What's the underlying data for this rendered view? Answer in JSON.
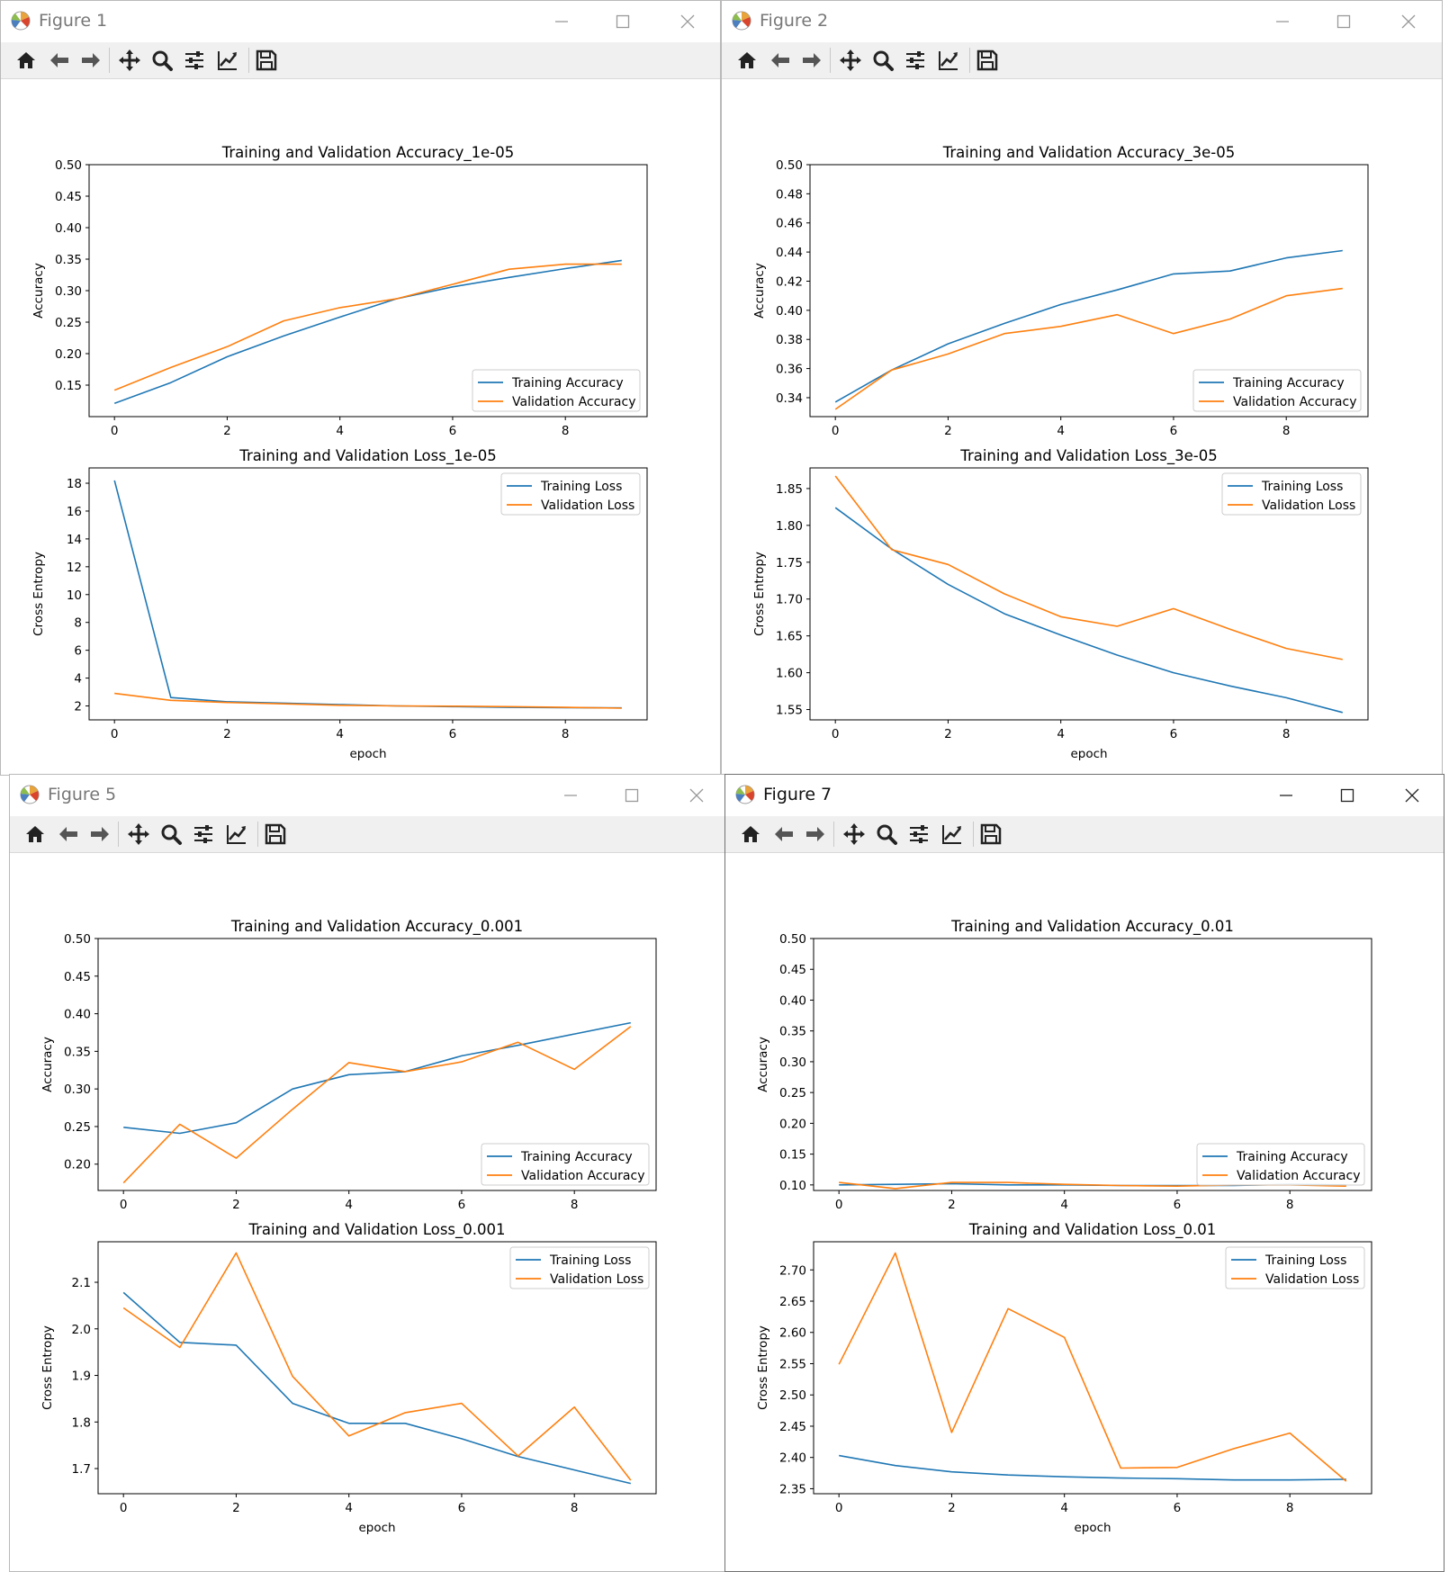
{
  "colors": {
    "train": "#1f77b4",
    "val": "#ff7f0e"
  },
  "toolbar_icons": [
    "home-icon",
    "back-arrow-icon",
    "forward-arrow-icon",
    "pan-icon",
    "zoom-icon",
    "configure-subplots-icon",
    "edit-axis-icon",
    "save-icon"
  ],
  "windows": [
    {
      "title": "Figure 1"
    },
    {
      "title": "Figure 2"
    },
    {
      "title": "Figure 5"
    },
    {
      "title": "Figure 7"
    }
  ],
  "chart_data": [
    {
      "figure": "Figure 1",
      "type": "line",
      "title": "Training and Validation Accuracy_1e-05",
      "xlabel": "",
      "ylabel": "Accuracy",
      "x": [
        0,
        1,
        2,
        3,
        4,
        5,
        6,
        7,
        8,
        9
      ],
      "ylim": [
        0.1,
        0.5
      ],
      "xlim": [
        -0.45,
        9.45
      ],
      "yticks": [
        0.15,
        0.2,
        0.25,
        0.3,
        0.35,
        0.4,
        0.45,
        0.5
      ],
      "yticklabels": [
        "0.15",
        "0.20",
        "0.25",
        "0.30",
        "0.35",
        "0.40",
        "0.45",
        "0.50"
      ],
      "xticks": [
        0,
        2,
        4,
        6,
        8
      ],
      "xticklabels": [
        "0",
        "2",
        "4",
        "6",
        "8"
      ],
      "legend_loc": "lower right",
      "series": [
        {
          "name": "Training Accuracy",
          "values": [
            0.121,
            0.154,
            0.195,
            0.228,
            0.258,
            0.287,
            0.306,
            0.321,
            0.335,
            0.348
          ]
        },
        {
          "name": "Validation Accuracy",
          "values": [
            0.142,
            0.178,
            0.211,
            0.252,
            0.273,
            0.287,
            0.31,
            0.334,
            0.342,
            0.342
          ]
        }
      ]
    },
    {
      "figure": "Figure 1",
      "type": "line",
      "title": "Training and Validation Loss_1e-05",
      "xlabel": "epoch",
      "ylabel": "Cross Entropy",
      "x": [
        0,
        1,
        2,
        3,
        4,
        5,
        6,
        7,
        8,
        9
      ],
      "ylim": [
        1.0,
        19.1
      ],
      "xlim": [
        -0.45,
        9.45
      ],
      "yticks": [
        2,
        4,
        6,
        8,
        10,
        12,
        14,
        16,
        18
      ],
      "yticklabels": [
        "2",
        "4",
        "6",
        "8",
        "10",
        "12",
        "14",
        "16",
        "18"
      ],
      "xticks": [
        0,
        2,
        4,
        6,
        8
      ],
      "xticklabels": [
        "0",
        "2",
        "4",
        "6",
        "8"
      ],
      "legend_loc": "upper right",
      "series": [
        {
          "name": "Training Loss",
          "values": [
            18.2,
            2.6,
            2.3,
            2.2,
            2.1,
            2.0,
            1.95,
            1.9,
            1.88,
            1.86
          ]
        },
        {
          "name": "Validation Loss",
          "values": [
            2.9,
            2.4,
            2.25,
            2.15,
            2.05,
            2.0,
            1.98,
            1.95,
            1.9,
            1.84
          ]
        }
      ]
    },
    {
      "figure": "Figure 2",
      "type": "line",
      "title": "Training and Validation Accuracy_3e-05",
      "xlabel": "",
      "ylabel": "Accuracy",
      "x": [
        0,
        1,
        2,
        3,
        4,
        5,
        6,
        7,
        8,
        9
      ],
      "ylim": [
        0.327,
        0.5
      ],
      "xlim": [
        -0.45,
        9.45
      ],
      "yticks": [
        0.34,
        0.36,
        0.38,
        0.4,
        0.42,
        0.44,
        0.46,
        0.48,
        0.5
      ],
      "yticklabels": [
        "0.34",
        "0.36",
        "0.38",
        "0.40",
        "0.42",
        "0.44",
        "0.46",
        "0.48",
        "0.50"
      ],
      "xticks": [
        0,
        2,
        4,
        6,
        8
      ],
      "xticklabels": [
        "0",
        "2",
        "4",
        "6",
        "8"
      ],
      "legend_loc": "lower right",
      "series": [
        {
          "name": "Training Accuracy",
          "values": [
            0.337,
            0.359,
            0.377,
            0.391,
            0.404,
            0.414,
            0.425,
            0.427,
            0.436,
            0.441
          ]
        },
        {
          "name": "Validation Accuracy",
          "values": [
            0.332,
            0.359,
            0.37,
            0.384,
            0.389,
            0.397,
            0.384,
            0.394,
            0.41,
            0.415
          ]
        }
      ]
    },
    {
      "figure": "Figure 2",
      "type": "line",
      "title": "Training and Validation Loss_3e-05",
      "xlabel": "epoch",
      "ylabel": "Cross Entropy",
      "x": [
        0,
        1,
        2,
        3,
        4,
        5,
        6,
        7,
        8,
        9
      ],
      "ylim": [
        1.536,
        1.878
      ],
      "xlim": [
        -0.45,
        9.45
      ],
      "yticks": [
        1.55,
        1.6,
        1.65,
        1.7,
        1.75,
        1.8,
        1.85
      ],
      "yticklabels": [
        "1.55",
        "1.60",
        "1.65",
        "1.70",
        "1.75",
        "1.80",
        "1.85"
      ],
      "xticks": [
        0,
        2,
        4,
        6,
        8
      ],
      "xticklabels": [
        "0",
        "2",
        "4",
        "6",
        "8"
      ],
      "legend_loc": "upper right",
      "series": [
        {
          "name": "Training Loss",
          "values": [
            1.824,
            1.768,
            1.72,
            1.68,
            1.651,
            1.624,
            1.6,
            1.582,
            1.566,
            1.546
          ]
        },
        {
          "name": "Validation Loss",
          "values": [
            1.867,
            1.767,
            1.747,
            1.707,
            1.676,
            1.663,
            1.687,
            1.659,
            1.633,
            1.618
          ]
        }
      ]
    },
    {
      "figure": "Figure 5",
      "type": "line",
      "title": "Training and Validation Accuracy_0.001",
      "xlabel": "",
      "ylabel": "Accuracy",
      "x": [
        0,
        1,
        2,
        3,
        4,
        5,
        6,
        7,
        8,
        9
      ],
      "ylim": [
        0.165,
        0.5
      ],
      "xlim": [
        -0.45,
        9.45
      ],
      "yticks": [
        0.2,
        0.25,
        0.3,
        0.35,
        0.4,
        0.45,
        0.5
      ],
      "yticklabels": [
        "0.20",
        "0.25",
        "0.30",
        "0.35",
        "0.40",
        "0.45",
        "0.50"
      ],
      "xticks": [
        0,
        2,
        4,
        6,
        8
      ],
      "xticklabels": [
        "0",
        "2",
        "4",
        "6",
        "8"
      ],
      "legend_loc": "lower right",
      "series": [
        {
          "name": "Training Accuracy",
          "values": [
            0.249,
            0.241,
            0.255,
            0.3,
            0.319,
            0.323,
            0.344,
            0.358,
            0.373,
            0.388
          ]
        },
        {
          "name": "Validation Accuracy",
          "values": [
            0.175,
            0.253,
            0.208,
            0.273,
            0.335,
            0.323,
            0.336,
            0.362,
            0.326,
            0.383
          ]
        }
      ]
    },
    {
      "figure": "Figure 5",
      "type": "line",
      "title": "Training and Validation Loss_0.001",
      "xlabel": "epoch",
      "ylabel": "Cross Entropy",
      "x": [
        0,
        1,
        2,
        3,
        4,
        5,
        6,
        7,
        8,
        9
      ],
      "ylim": [
        1.646,
        2.187
      ],
      "xlim": [
        -0.45,
        9.45
      ],
      "yticks": [
        1.7,
        1.8,
        1.9,
        2.0,
        2.1
      ],
      "yticklabels": [
        "1.7",
        "1.8",
        "1.9",
        "2.0",
        "2.1"
      ],
      "xticks": [
        0,
        2,
        4,
        6,
        8
      ],
      "xticklabels": [
        "0",
        "2",
        "4",
        "6",
        "8"
      ],
      "legend_loc": "upper right",
      "series": [
        {
          "name": "Training Loss",
          "values": [
            2.078,
            1.971,
            1.965,
            1.84,
            1.797,
            1.797,
            1.764,
            1.726,
            1.697,
            1.668
          ]
        },
        {
          "name": "Validation Loss",
          "values": [
            2.045,
            1.96,
            2.163,
            1.898,
            1.77,
            1.82,
            1.84,
            1.727,
            1.832,
            1.675
          ]
        }
      ]
    },
    {
      "figure": "Figure 7",
      "type": "line",
      "title": "Training and Validation Accuracy_0.01",
      "xlabel": "",
      "ylabel": "Accuracy",
      "x": [
        0,
        1,
        2,
        3,
        4,
        5,
        6,
        7,
        8,
        9
      ],
      "ylim": [
        0.091,
        0.5
      ],
      "xlim": [
        -0.45,
        9.45
      ],
      "yticks": [
        0.1,
        0.15,
        0.2,
        0.25,
        0.3,
        0.35,
        0.4,
        0.45,
        0.5
      ],
      "yticklabels": [
        "0.10",
        "0.15",
        "0.20",
        "0.25",
        "0.30",
        "0.35",
        "0.40",
        "0.45",
        "0.50"
      ],
      "xticks": [
        0,
        2,
        4,
        6,
        8
      ],
      "xticklabels": [
        "0",
        "2",
        "4",
        "6",
        "8"
      ],
      "legend_loc": "lower right",
      "series": [
        {
          "name": "Training Accuracy",
          "values": [
            0.1,
            0.101,
            0.102,
            0.1,
            0.1,
            0.099,
            0.099,
            0.099,
            0.101,
            0.1
          ]
        },
        {
          "name": "Validation Accuracy",
          "values": [
            0.104,
            0.094,
            0.104,
            0.104,
            0.101,
            0.099,
            0.098,
            0.1,
            0.1,
            0.098
          ]
        }
      ]
    },
    {
      "figure": "Figure 7",
      "type": "line",
      "title": "Training and Validation Loss_0.01",
      "xlabel": "epoch",
      "ylabel": "Cross Entropy",
      "x": [
        0,
        1,
        2,
        3,
        4,
        5,
        6,
        7,
        8,
        9
      ],
      "ylim": [
        2.342,
        2.745
      ],
      "xlim": [
        -0.45,
        9.45
      ],
      "yticks": [
        2.35,
        2.4,
        2.45,
        2.5,
        2.55,
        2.6,
        2.65,
        2.7
      ],
      "yticklabels": [
        "2.35",
        "2.40",
        "2.45",
        "2.50",
        "2.55",
        "2.60",
        "2.65",
        "2.70"
      ],
      "xticks": [
        0,
        2,
        4,
        6,
        8
      ],
      "xticklabels": [
        "0",
        "2",
        "4",
        "6",
        "8"
      ],
      "legend_loc": "upper right",
      "series": [
        {
          "name": "Training Loss",
          "values": [
            2.403,
            2.387,
            2.377,
            2.372,
            2.369,
            2.367,
            2.366,
            2.364,
            2.364,
            2.365
          ]
        },
        {
          "name": "Validation Loss",
          "values": [
            2.549,
            2.727,
            2.44,
            2.638,
            2.592,
            2.383,
            2.384,
            2.414,
            2.439,
            2.362
          ]
        }
      ]
    }
  ]
}
